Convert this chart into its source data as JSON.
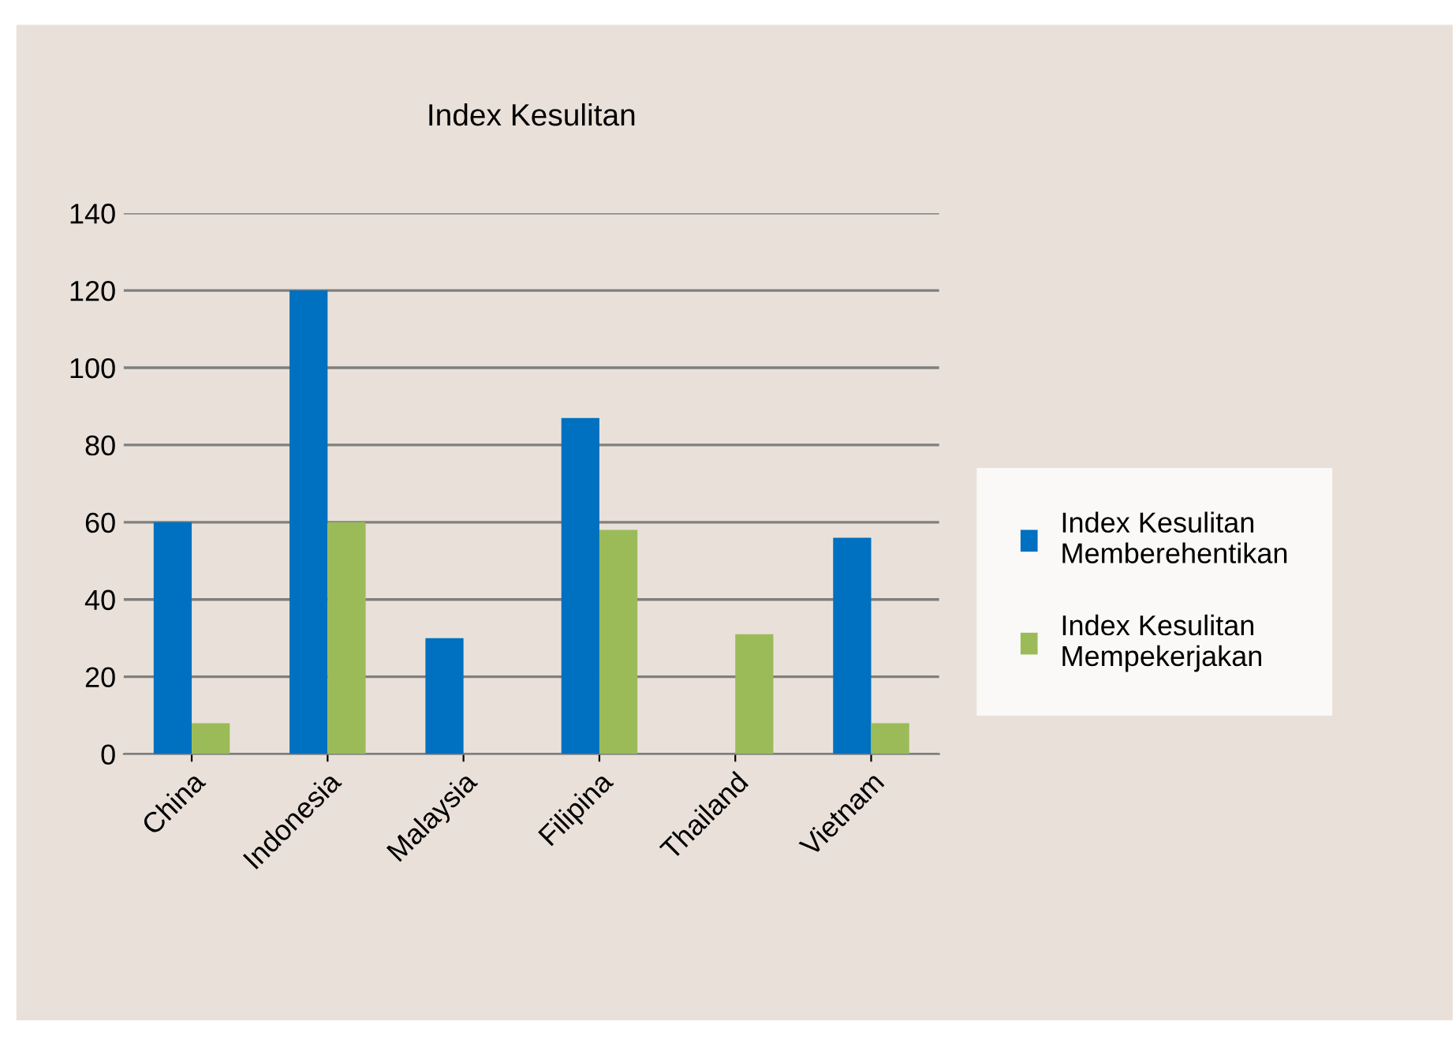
{
  "chart_data": {
    "type": "bar",
    "title": "Index Kesulitan",
    "categories": [
      "China",
      "Indonesia",
      "Malaysia",
      "Filipina",
      "Thailand",
      "Vietnam"
    ],
    "series": [
      {
        "name": "Index Kesulitan Memberehentikan",
        "color": "#0070c0",
        "values": [
          60,
          120,
          30,
          87,
          null,
          56
        ]
      },
      {
        "name": "Index Kesulitan Mempekerjakan",
        "color": "#9bbb59",
        "values": [
          8,
          60,
          null,
          58,
          31,
          8
        ]
      }
    ],
    "ylim": [
      0,
      140
    ],
    "yticks": [
      0,
      20,
      40,
      60,
      80,
      100,
      120,
      140
    ],
    "grid": "y",
    "legend": "right"
  }
}
